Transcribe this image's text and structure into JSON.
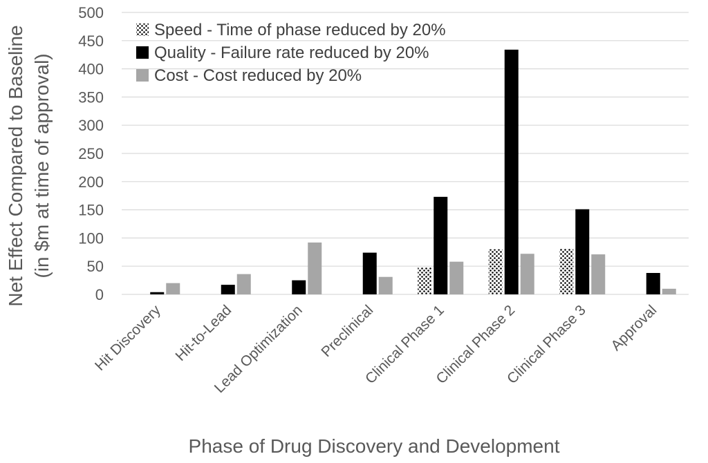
{
  "chart_data": {
    "type": "bar",
    "xlabel": "Phase of Drug Discovery and Development",
    "ylabel_line1": "Net Effect Compared to Baseline",
    "ylabel_line2": "(in $m at time of approval)",
    "ylim": [
      0,
      500
    ],
    "yticks": [
      0,
      50,
      100,
      150,
      200,
      250,
      300,
      350,
      400,
      450,
      500
    ],
    "grid": true,
    "legend_position": "top-left",
    "categories": [
      "Hit Discovery",
      "Hit-to-Lead",
      "Lead Optimization",
      "Preclinical",
      "Clinical Phase 1",
      "Clinical Phase 2",
      "Clinical Phase 3",
      "Approval"
    ],
    "series": [
      {
        "name": "Speed - Time of phase reduced by 20%",
        "style": "dotted",
        "color": "#000000",
        "values": [
          0,
          0,
          0,
          0,
          48,
          80,
          81,
          0
        ]
      },
      {
        "name": "Quality - Failure rate reduced by 20%",
        "style": "solid",
        "color": "#000000",
        "values": [
          4,
          17,
          25,
          74,
          173,
          434,
          151,
          38
        ]
      },
      {
        "name": "Cost - Cost reduced by 20%",
        "style": "solid",
        "color": "#a6a6a6",
        "values": [
          20,
          36,
          92,
          31,
          58,
          72,
          71,
          10
        ]
      }
    ]
  }
}
